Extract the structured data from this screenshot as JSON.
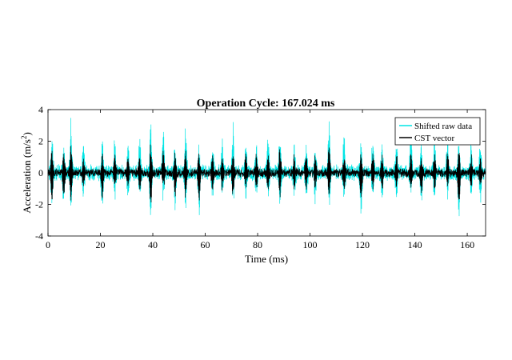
{
  "chart_data": {
    "type": "line",
    "title": "Operation Cycle: 167.024 ms",
    "xlabel": "Time (ms)",
    "ylabel_main": "Acceleration (m/s",
    "ylabel_sup": "2",
    "ylabel_close": ")",
    "xlim": [
      0,
      167
    ],
    "ylim": [
      -4,
      4
    ],
    "xticks": [
      0,
      20,
      40,
      60,
      80,
      100,
      120,
      140,
      160
    ],
    "yticks": [
      -4,
      -2,
      0,
      2,
      4
    ],
    "grid": false,
    "legend_position": "top-right",
    "series": [
      {
        "name": "Shifted raw data",
        "color": "#00e5e5",
        "noise_amplitude": 0.55,
        "peaks": [
          {
            "t": 1.5,
            "hi": 2.4,
            "lo": -2.0
          },
          {
            "t": 6.0,
            "hi": 2.0,
            "lo": -2.2
          },
          {
            "t": 8.8,
            "hi": 3.55,
            "lo": -2.4
          },
          {
            "t": 13.5,
            "hi": 1.8,
            "lo": -1.5
          },
          {
            "t": 20.7,
            "hi": 2.1,
            "lo": -2.65
          },
          {
            "t": 25.5,
            "hi": 2.2,
            "lo": -1.6
          },
          {
            "t": 30.5,
            "hi": 1.9,
            "lo": -1.4
          },
          {
            "t": 35.0,
            "hi": 2.0,
            "lo": -1.8
          },
          {
            "t": 39.2,
            "hi": 3.4,
            "lo": -2.65
          },
          {
            "t": 44.0,
            "hi": 2.7,
            "lo": -1.5
          },
          {
            "t": 48.5,
            "hi": 2.1,
            "lo": -2.2
          },
          {
            "t": 52.5,
            "hi": 2.6,
            "lo": -2.2
          },
          {
            "t": 57.6,
            "hi": 1.8,
            "lo": -2.7
          },
          {
            "t": 62.8,
            "hi": 2.0,
            "lo": -1.6
          },
          {
            "t": 66.5,
            "hi": 1.9,
            "lo": -1.5
          },
          {
            "t": 70.6,
            "hi": 3.0,
            "lo": -2.1
          },
          {
            "t": 75.5,
            "hi": 2.1,
            "lo": -1.5
          },
          {
            "t": 79.5,
            "hi": 2.0,
            "lo": -1.6
          },
          {
            "t": 84.0,
            "hi": 2.4,
            "lo": -1.8
          },
          {
            "t": 88.5,
            "hi": 3.0,
            "lo": -2.4
          },
          {
            "t": 94.0,
            "hi": 2.0,
            "lo": -1.6
          },
          {
            "t": 98.5,
            "hi": 2.1,
            "lo": -1.8
          },
          {
            "t": 102.0,
            "hi": 1.8,
            "lo": -1.7
          },
          {
            "t": 107.3,
            "hi": 3.35,
            "lo": -2.4
          },
          {
            "t": 113.0,
            "hi": 2.2,
            "lo": -1.8
          },
          {
            "t": 119.5,
            "hi": 2.1,
            "lo": -2.65
          },
          {
            "t": 124.0,
            "hi": 2.4,
            "lo": -1.6
          },
          {
            "t": 127.5,
            "hi": 2.0,
            "lo": -1.6
          },
          {
            "t": 133.0,
            "hi": 2.0,
            "lo": -1.5
          },
          {
            "t": 138.5,
            "hi": 2.6,
            "lo": -1.6
          },
          {
            "t": 142.5,
            "hi": 1.9,
            "lo": -2.0
          },
          {
            "t": 147.5,
            "hi": 2.0,
            "lo": -1.7
          },
          {
            "t": 152.5,
            "hi": 2.4,
            "lo": -1.6
          },
          {
            "t": 156.8,
            "hi": 2.5,
            "lo": -2.8
          },
          {
            "t": 161.5,
            "hi": 1.9,
            "lo": -1.6
          },
          {
            "t": 165.0,
            "hi": 1.8,
            "lo": -1.6
          }
        ]
      },
      {
        "name": "CST vector",
        "color": "#000000",
        "noise_amplitude": 0.3,
        "peaks": [
          {
            "t": 1.5,
            "hi": 1.5,
            "lo": -1.8
          },
          {
            "t": 6.0,
            "hi": 1.2,
            "lo": -1.5
          },
          {
            "t": 8.8,
            "hi": 1.8,
            "lo": -1.6
          },
          {
            "t": 13.5,
            "hi": 1.0,
            "lo": -1.0
          },
          {
            "t": 20.7,
            "hi": 1.2,
            "lo": -1.8
          },
          {
            "t": 25.5,
            "hi": 1.2,
            "lo": -1.0
          },
          {
            "t": 30.5,
            "hi": 1.0,
            "lo": -0.9
          },
          {
            "t": 35.0,
            "hi": 1.1,
            "lo": -1.2
          },
          {
            "t": 39.2,
            "hi": 1.8,
            "lo": -2.2
          },
          {
            "t": 44.0,
            "hi": 1.5,
            "lo": -1.0
          },
          {
            "t": 48.5,
            "hi": 1.2,
            "lo": -1.5
          },
          {
            "t": 52.5,
            "hi": 1.4,
            "lo": -1.6
          },
          {
            "t": 57.6,
            "hi": 1.0,
            "lo": -2.0
          },
          {
            "t": 62.8,
            "hi": 1.1,
            "lo": -1.0
          },
          {
            "t": 66.5,
            "hi": 1.0,
            "lo": -1.0
          },
          {
            "t": 70.6,
            "hi": 1.6,
            "lo": -1.4
          },
          {
            "t": 75.5,
            "hi": 1.1,
            "lo": -1.0
          },
          {
            "t": 79.5,
            "hi": 1.1,
            "lo": -1.0
          },
          {
            "t": 84.0,
            "hi": 1.3,
            "lo": -1.2
          },
          {
            "t": 88.5,
            "hi": 1.6,
            "lo": -1.5
          },
          {
            "t": 94.0,
            "hi": 1.1,
            "lo": -1.0
          },
          {
            "t": 98.5,
            "hi": 1.2,
            "lo": -1.2
          },
          {
            "t": 102.0,
            "hi": 1.0,
            "lo": -1.1
          },
          {
            "t": 107.3,
            "hi": 1.9,
            "lo": -1.6
          },
          {
            "t": 113.0,
            "hi": 1.2,
            "lo": -1.2
          },
          {
            "t": 119.5,
            "hi": 1.2,
            "lo": -1.9
          },
          {
            "t": 124.0,
            "hi": 1.3,
            "lo": -1.0
          },
          {
            "t": 127.5,
            "hi": 1.1,
            "lo": -1.0
          },
          {
            "t": 133.0,
            "hi": 1.1,
            "lo": -1.0
          },
          {
            "t": 138.5,
            "hi": 1.4,
            "lo": -1.0
          },
          {
            "t": 142.5,
            "hi": 1.0,
            "lo": -1.3
          },
          {
            "t": 147.5,
            "hi": 1.1,
            "lo": -1.1
          },
          {
            "t": 152.5,
            "hi": 1.3,
            "lo": -1.0
          },
          {
            "t": 156.8,
            "hi": 1.4,
            "lo": -2.1
          },
          {
            "t": 161.5,
            "hi": 1.0,
            "lo": -1.0
          },
          {
            "t": 165.0,
            "hi": 1.0,
            "lo": -1.0
          }
        ]
      }
    ]
  }
}
